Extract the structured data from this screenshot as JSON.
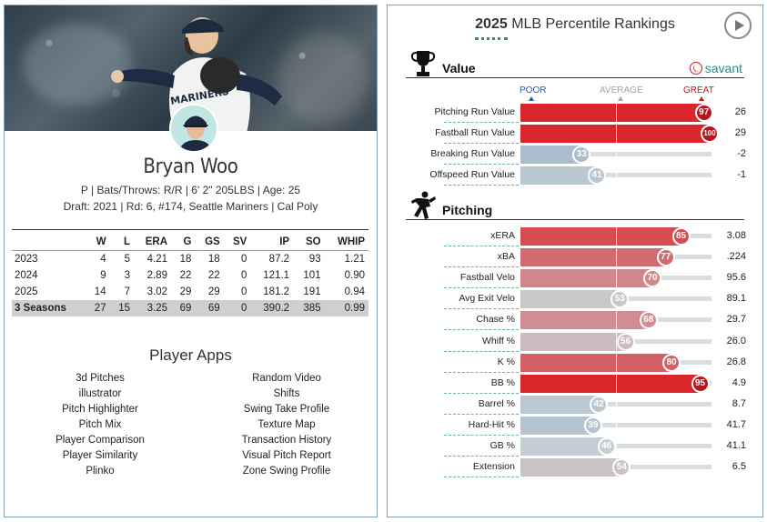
{
  "player": {
    "name": "Bryan Woo",
    "bio_line1": "P | Bats/Throws: R/R | 6' 2\" 205LBS | Age: 25",
    "bio_line2": "Draft: 2021 | Rd: 6, #174, Seattle Mariners | Cal Poly"
  },
  "stats_table": {
    "headers": [
      "",
      "W",
      "L",
      "ERA",
      "G",
      "GS",
      "SV",
      "IP",
      "SO",
      "WHIP"
    ],
    "rows": [
      [
        "2023",
        "4",
        "5",
        "4.21",
        "18",
        "18",
        "0",
        "87.2",
        "93",
        "1.21"
      ],
      [
        "2024",
        "9",
        "3",
        "2.89",
        "22",
        "22",
        "0",
        "121.1",
        "101",
        "0.90"
      ],
      [
        "2025",
        "14",
        "7",
        "3.02",
        "29",
        "29",
        "0",
        "181.2",
        "191",
        "0.94"
      ]
    ],
    "total": [
      "3 Seasons",
      "27",
      "15",
      "3.25",
      "69",
      "69",
      "0",
      "390.2",
      "385",
      "0.99"
    ]
  },
  "apps": {
    "title": "Player Apps",
    "left": [
      "3d Pitches",
      "illustrator",
      "Pitch Highlighter",
      "Pitch Mix",
      "Player Comparison",
      "Player Similarity",
      "Plinko"
    ],
    "right": [
      "Random Video",
      "Shifts",
      "Swing Take Profile",
      "Texture Map",
      "Transaction History",
      "Visual Pitch Report",
      "Zone Swing Profile"
    ]
  },
  "rankings": {
    "year": "2025",
    "title_rest": " MLB Percentile Rankings",
    "savant_label": "savant",
    "scale": {
      "poor": "POOR",
      "average": "AVERAGE",
      "great": "GREAT"
    },
    "colors": {
      "great": "#d8262b",
      "poor": "#93aac6",
      "average": "#c9d3d6"
    },
    "value_section": {
      "title": "Value",
      "metrics": [
        {
          "label": "Pitching Run Value",
          "pct": 97,
          "value": "26"
        },
        {
          "label": "Fastball Run Value",
          "pct": 100,
          "value": "29"
        },
        {
          "label": "Breaking Run Value",
          "pct": 33,
          "value": "-2"
        },
        {
          "label": "Offspeed Run Value",
          "pct": 41,
          "value": "-1"
        }
      ]
    },
    "pitching_section": {
      "title": "Pitching",
      "metrics": [
        {
          "label": "xERA",
          "pct": 85,
          "value": "3.08"
        },
        {
          "label": "xBA",
          "pct": 77,
          "value": ".224"
        },
        {
          "label": "Fastball Velo",
          "pct": 70,
          "value": "95.6"
        },
        {
          "label": "Avg Exit Velo",
          "pct": 53,
          "value": "89.1"
        },
        {
          "label": "Chase %",
          "pct": 68,
          "value": "29.7"
        },
        {
          "label": "Whiff %",
          "pct": 56,
          "value": "26.0"
        },
        {
          "label": "K %",
          "pct": 80,
          "value": "26.8"
        },
        {
          "label": "BB %",
          "pct": 95,
          "value": "4.9"
        },
        {
          "label": "Barrel %",
          "pct": 42,
          "value": "8.7"
        },
        {
          "label": "Hard-Hit %",
          "pct": 39,
          "value": "41.7"
        },
        {
          "label": "GB %",
          "pct": 46,
          "value": "41.1"
        },
        {
          "label": "Extension",
          "pct": 54,
          "value": "6.5"
        }
      ]
    }
  }
}
